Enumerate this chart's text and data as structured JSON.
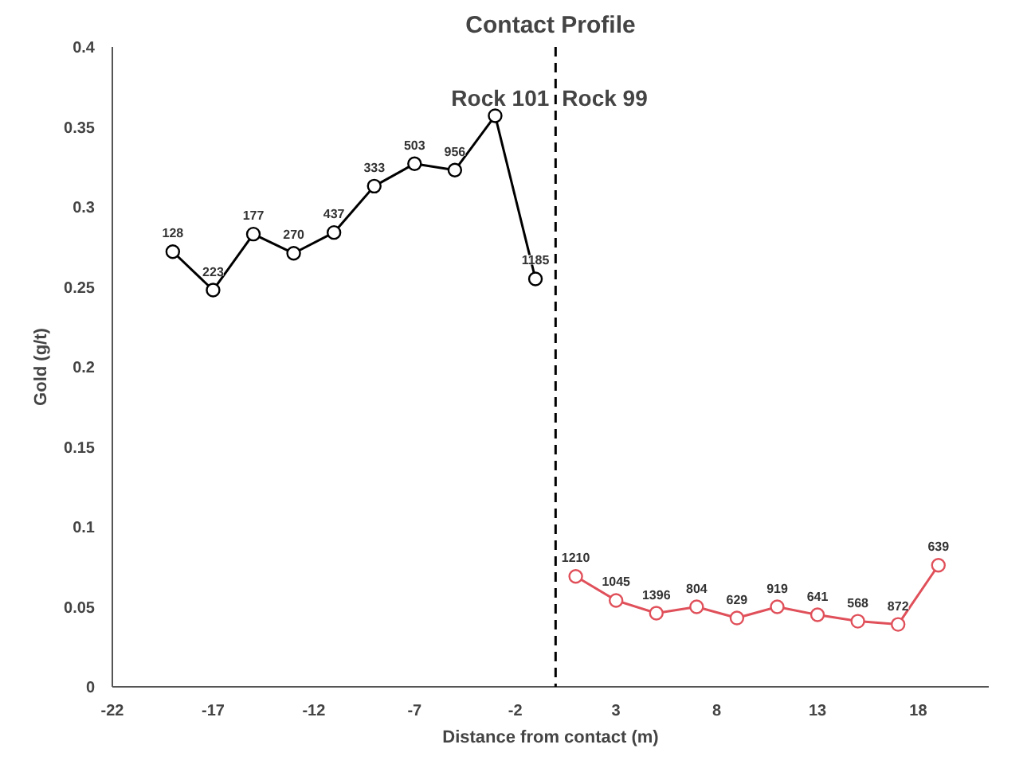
{
  "chart_data": {
    "type": "line",
    "title": "Contact Profile",
    "xlabel": "Distance from contact (m)",
    "ylabel": "Gold (g/t)",
    "xlim": [
      -22,
      21.5
    ],
    "xticks": [
      -22,
      -17,
      -12,
      -7,
      -2,
      3,
      8,
      13,
      18
    ],
    "ylim": [
      0,
      0.4
    ],
    "yticks": [
      0,
      0.05,
      0.1,
      0.15,
      0.2,
      0.25,
      0.3,
      0.35,
      0.4
    ],
    "grid": false,
    "marker": "circle",
    "line_style": "solid",
    "series": [
      {
        "color": "#000000",
        "x": [
          -19,
          -17,
          -15,
          -13,
          -11,
          -9,
          -7,
          -5,
          -3,
          -1
        ],
        "values": [
          0.272,
          0.248,
          0.283,
          0.271,
          0.284,
          0.313,
          0.327,
          0.323,
          0.357,
          0.255
        ]
      },
      {
        "color": "#e0505a",
        "x": [
          1,
          3,
          5,
          7,
          9,
          11,
          13,
          15,
          17,
          19
        ],
        "values": [
          0.069,
          0.054,
          0.046,
          0.05,
          0.043,
          0.05,
          0.045,
          0.041,
          0.039,
          0.076
        ]
      }
    ],
    "ref_lines": [
      {
        "axis": "x",
        "value": 0,
        "color": "#000000",
        "line_style": "dashed"
      }
    ],
    "annotations": [
      "Rock 101",
      "Rock 99",
      {
        "text": "128",
        "x": -19,
        "y": 0.272
      },
      {
        "text": "223",
        "x": -17,
        "y": 0.248
      },
      {
        "text": "177",
        "x": -15,
        "y": 0.283
      },
      {
        "text": "270",
        "x": -13,
        "y": 0.271
      },
      {
        "text": "437",
        "x": -11,
        "y": 0.284
      },
      {
        "text": "333",
        "x": -9,
        "y": 0.313
      },
      {
        "text": "503",
        "x": -7,
        "y": 0.327
      },
      {
        "text": "956",
        "x": -5,
        "y": 0.323
      },
      {
        "text": "1185",
        "x": -1,
        "y": 0.255
      },
      {
        "text": "1210",
        "x": 1,
        "y": 0.069
      },
      {
        "text": "1045",
        "x": 3,
        "y": 0.054
      },
      {
        "text": "1396",
        "x": 5,
        "y": 0.046
      },
      {
        "text": "804",
        "x": 7,
        "y": 0.05
      },
      {
        "text": "629",
        "x": 9,
        "y": 0.043
      },
      {
        "text": "919",
        "x": 11,
        "y": 0.05
      },
      {
        "text": "641",
        "x": 13,
        "y": 0.045
      },
      {
        "text": "568",
        "x": 15,
        "y": 0.041
      },
      {
        "text": "872",
        "x": 17,
        "y": 0.039
      },
      {
        "text": "639",
        "x": 19,
        "y": 0.076
      }
    ]
  }
}
